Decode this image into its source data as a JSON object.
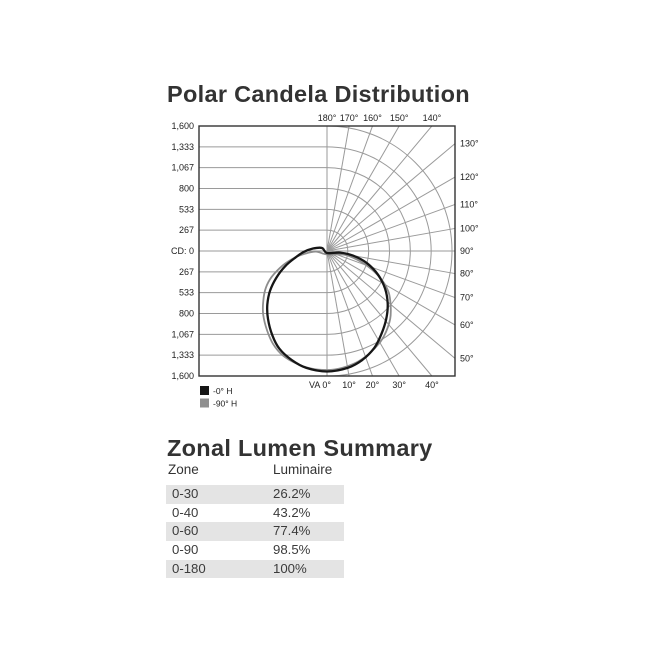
{
  "polar_section": {
    "title": "Polar Candela Distribution"
  },
  "zonal_section": {
    "title": "Zonal Lumen Summary",
    "headers": [
      "Zone",
      "Luminaire"
    ],
    "rows": [
      {
        "zone": "0-30",
        "luminaire": "26.2%"
      },
      {
        "zone": "0-40",
        "luminaire": "43.2%"
      },
      {
        "zone": "0-60",
        "luminaire": "77.4%"
      },
      {
        "zone": "0-90",
        "luminaire": "98.5%"
      },
      {
        "zone": "0-180",
        "luminaire": "100%"
      }
    ],
    "stripe_color": "#e4e4e4"
  },
  "chart_data": {
    "type": "polar",
    "title": "Polar Candela Distribution",
    "radial_axis": {
      "label_zero": "CD: 0",
      "max": 1600,
      "ticks": [
        267,
        533,
        800,
        1067,
        1333,
        1600
      ],
      "tick_labels": [
        "267",
        "533",
        "800",
        "1,067",
        "1,333",
        "1,600"
      ]
    },
    "angle_labels": {
      "top": {
        "labels": [
          "180°",
          "170°",
          "160°",
          "150°",
          "140°"
        ],
        "degrees": [
          180,
          170,
          160,
          150,
          140
        ]
      },
      "right": {
        "labels": [
          "130°",
          "120°",
          "110°",
          "100°",
          "90°",
          "80°",
          "70°",
          "60°",
          "50°"
        ],
        "degrees": [
          130,
          120,
          110,
          100,
          90,
          80,
          70,
          60,
          50
        ]
      },
      "bottom": {
        "labels": [
          "VA 0°",
          "10°",
          "20°",
          "30°",
          "40°"
        ],
        "degrees": [
          0,
          10,
          20,
          30,
          40
        ]
      }
    },
    "grid": {
      "color": "#9a9a9a",
      "border_color": "#333333",
      "arc_count": 6,
      "radial_step_deg": 10
    },
    "legend": [
      {
        "label": "-0° H",
        "color": "#161616"
      },
      {
        "label": "-90° H",
        "color": "#8f8f8f"
      }
    ],
    "series": [
      {
        "name": "-0° H",
        "color": "#161616",
        "stroke_width": 2.3,
        "points_va_cd": [
          [
            0,
            26
          ],
          [
            -121,
            75
          ],
          [
            -100,
            182
          ],
          [
            -88,
            295
          ],
          [
            -78,
            418
          ],
          [
            -70,
            571
          ],
          [
            -62,
            736
          ],
          [
            -55,
            891
          ],
          [
            -48,
            1028
          ],
          [
            -41,
            1152
          ],
          [
            -33,
            1285
          ],
          [
            -26,
            1391
          ],
          [
            -18,
            1465
          ],
          [
            -10,
            1519
          ],
          [
            0,
            1542
          ],
          [
            10,
            1519
          ],
          [
            18,
            1465
          ],
          [
            26,
            1380
          ],
          [
            33,
            1274
          ],
          [
            41,
            1155
          ],
          [
            49,
            1029
          ],
          [
            57,
            887
          ],
          [
            65,
            722
          ],
          [
            73,
            536
          ],
          [
            80,
            338
          ],
          [
            83,
            168
          ]
        ]
      },
      {
        "name": "-90° H",
        "color": "#8d8d8d",
        "stroke_width": 1.8,
        "points_va_cd": [
          [
            0,
            45
          ],
          [
            -87,
            141
          ],
          [
            -83,
            283
          ],
          [
            -78,
            432
          ],
          [
            -72,
            593
          ],
          [
            -65,
            779
          ],
          [
            -59,
            913
          ],
          [
            -52,
            1035
          ],
          [
            -45,
            1154
          ],
          [
            -37,
            1274
          ],
          [
            -30,
            1377
          ],
          [
            -23,
            1451
          ],
          [
            -15,
            1494
          ],
          [
            -8,
            1518
          ],
          [
            0,
            1523
          ],
          [
            7,
            1510
          ],
          [
            15,
            1475
          ],
          [
            22,
            1424
          ],
          [
            30,
            1353
          ],
          [
            36,
            1283
          ],
          [
            43,
            1186
          ],
          [
            49,
            1080
          ],
          [
            56,
            953
          ],
          [
            62,
            799
          ],
          [
            68,
            606
          ],
          [
            74,
            399
          ],
          [
            78,
            222
          ]
        ]
      }
    ]
  }
}
